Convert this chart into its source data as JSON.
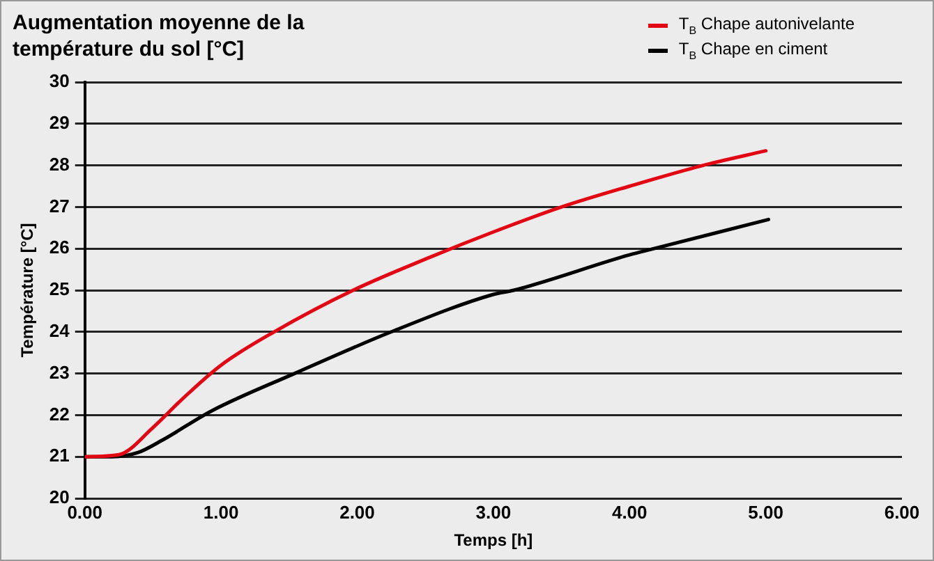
{
  "chart_data": {
    "type": "line",
    "title": "Augmentation moyenne de la température du sol [°C]",
    "xlabel": "Temps [h]",
    "ylabel": "Température [°C]",
    "xlim": [
      0,
      6
    ],
    "xticks": [
      {
        "value": 0,
        "label": "0.00"
      },
      {
        "value": 1,
        "label": "1.00"
      },
      {
        "value": 2,
        "label": "2.00"
      },
      {
        "value": 3,
        "label": "3.00"
      },
      {
        "value": 4,
        "label": "4.00"
      },
      {
        "value": 5,
        "label": "5.00"
      },
      {
        "value": 6,
        "label": "6.00"
      }
    ],
    "ylim": [
      20,
      30
    ],
    "yticks": [
      20,
      21,
      22,
      23,
      24,
      25,
      26,
      27,
      28,
      29,
      30
    ],
    "grid": "y",
    "legend": "top right",
    "marker": "none",
    "line_style": "solid",
    "series": [
      {
        "name": "T$_{B}$ Chape autonivelante",
        "color": "#e30613",
        "x": [
          0,
          0.25,
          0.5,
          0.72,
          1.0,
          1.39,
          1.97,
          2.54,
          3.0,
          3.5,
          4.0,
          4.54,
          5.0
        ],
        "values": [
          21,
          21.05,
          21.7,
          22.4,
          23.2,
          24.0,
          25.0,
          25.8,
          26.4,
          27.0,
          27.5,
          28.0,
          28.35
        ]
      },
      {
        "name": "T$_{B}$ Chape en ciment",
        "color": "#000000",
        "x": [
          0,
          0.2,
          0.39,
          0.57,
          0.93,
          1.54,
          2.25,
          3.0,
          3.15,
          4.0,
          4.18,
          5.02
        ],
        "values": [
          21,
          21,
          21.1,
          21.4,
          22.1,
          23.0,
          24.0,
          24.9,
          25.0,
          25.85,
          26.0,
          26.7
        ]
      }
    ]
  }
}
